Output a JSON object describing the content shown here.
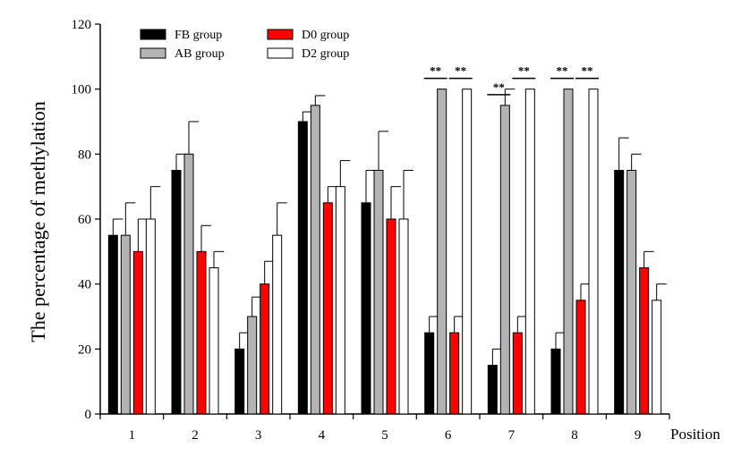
{
  "chart_data": {
    "type": "bar",
    "ylabel": "The percentage of methylation",
    "xlabel": "Position",
    "ylim": [
      0,
      120
    ],
    "yticks": [
      0,
      20,
      40,
      60,
      80,
      100,
      120
    ],
    "categories": [
      "1",
      "2",
      "3",
      "4",
      "5",
      "6",
      "7",
      "8",
      "9"
    ],
    "series": [
      {
        "name": "FB group",
        "color": "#000000",
        "values": [
          55,
          75,
          20,
          90,
          65,
          25,
          15,
          20,
          75
        ],
        "errors": [
          5,
          5,
          5,
          3,
          10,
          5,
          5,
          5,
          10
        ]
      },
      {
        "name": "AB group",
        "color": "#b3b3b3",
        "values": [
          55,
          80,
          30,
          95,
          75,
          100,
          95,
          100,
          75
        ],
        "errors": [
          10,
          10,
          6,
          3,
          12,
          0,
          5,
          0,
          5
        ]
      },
      {
        "name": "D0  group",
        "color": "#ff0000",
        "values": [
          50,
          50,
          40,
          65,
          60,
          25,
          25,
          35,
          45
        ],
        "errors": [
          10,
          8,
          7,
          5,
          10,
          5,
          5,
          5,
          5
        ]
      },
      {
        "name": "D2  group",
        "color": "#ffffff",
        "values": [
          60,
          45,
          55,
          70,
          60,
          100,
          100,
          100,
          35
        ],
        "errors": [
          10,
          5,
          10,
          8,
          15,
          0,
          0,
          0,
          5
        ]
      }
    ],
    "legend_position": "top-left",
    "significance": [
      {
        "category": "6",
        "pair": "FB-AB",
        "label": "**"
      },
      {
        "category": "6",
        "pair": "D0-D2",
        "label": "**"
      },
      {
        "category": "7",
        "pair": "FB-AB",
        "label": "**"
      },
      {
        "category": "7",
        "pair": "D0-D2",
        "label": "**"
      },
      {
        "category": "8",
        "pair": "FB-AB",
        "label": "**"
      },
      {
        "category": "8",
        "pair": "D0-D2",
        "label": "**"
      }
    ]
  }
}
